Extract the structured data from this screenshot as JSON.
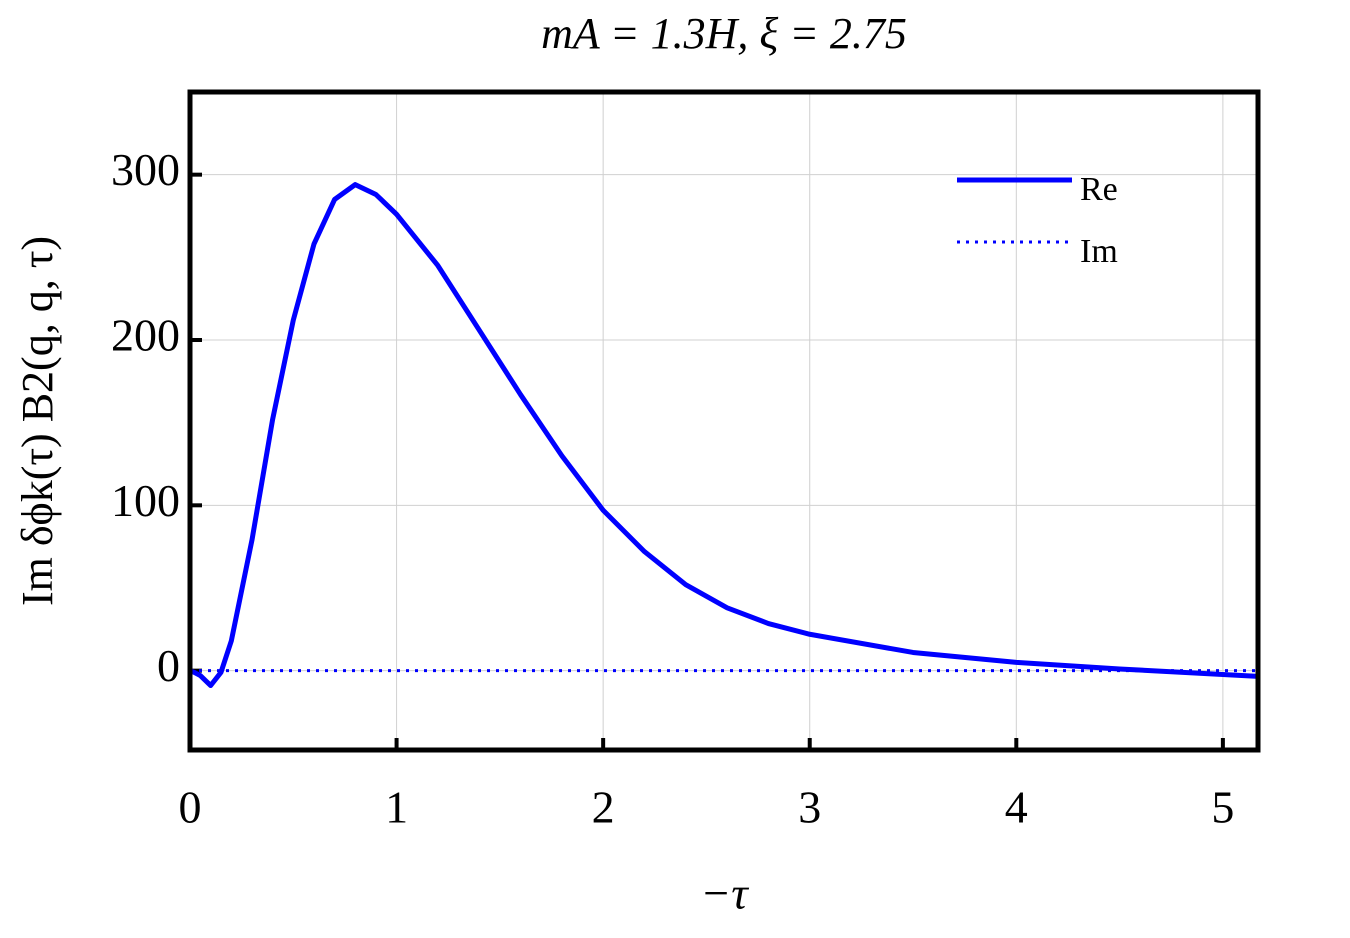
{
  "chart_data": {
    "type": "line",
    "title": "mA = 1.3H, ξ = 2.75",
    "x_label": "−τ",
    "y_label": "Im δϕk(τ) B2(q, q, τ)",
    "x": [
      0,
      0.02,
      0.05,
      0.1,
      0.15,
      0.2,
      0.3,
      0.4,
      0.5,
      0.6,
      0.7,
      0.8,
      0.9,
      1.0,
      1.2,
      1.4,
      1.6,
      1.8,
      2.0,
      2.2,
      2.4,
      2.6,
      2.8,
      3.0,
      3.5,
      4.0,
      4.5,
      5.17
    ],
    "series": [
      {
        "name": "Re",
        "color": "#0000ff",
        "style": "solid",
        "values": [
          0,
          -1,
          -3,
          -9,
          -1,
          18,
          79,
          152,
          212,
          258,
          285,
          294,
          288,
          276,
          245,
          206,
          167,
          130,
          97,
          72,
          52,
          38,
          28.5,
          22,
          11,
          5,
          1,
          -3.5
        ]
      },
      {
        "name": "Im",
        "color": "#0000ff",
        "style": "dotted",
        "values": [
          0,
          0,
          0,
          0,
          0,
          0,
          0,
          0,
          0,
          0,
          0,
          0,
          0,
          0,
          0,
          0,
          0,
          0,
          0,
          0,
          0,
          0,
          0,
          0,
          0,
          0,
          0,
          0
        ]
      }
    ],
    "xlim": [
      0,
      5.17
    ],
    "ylim": [
      -48,
      350
    ],
    "xticks": [
      0,
      1,
      2,
      3,
      4,
      5
    ],
    "yticks": [
      0,
      100,
      200,
      300
    ],
    "grid": true,
    "legend": "upper right"
  }
}
